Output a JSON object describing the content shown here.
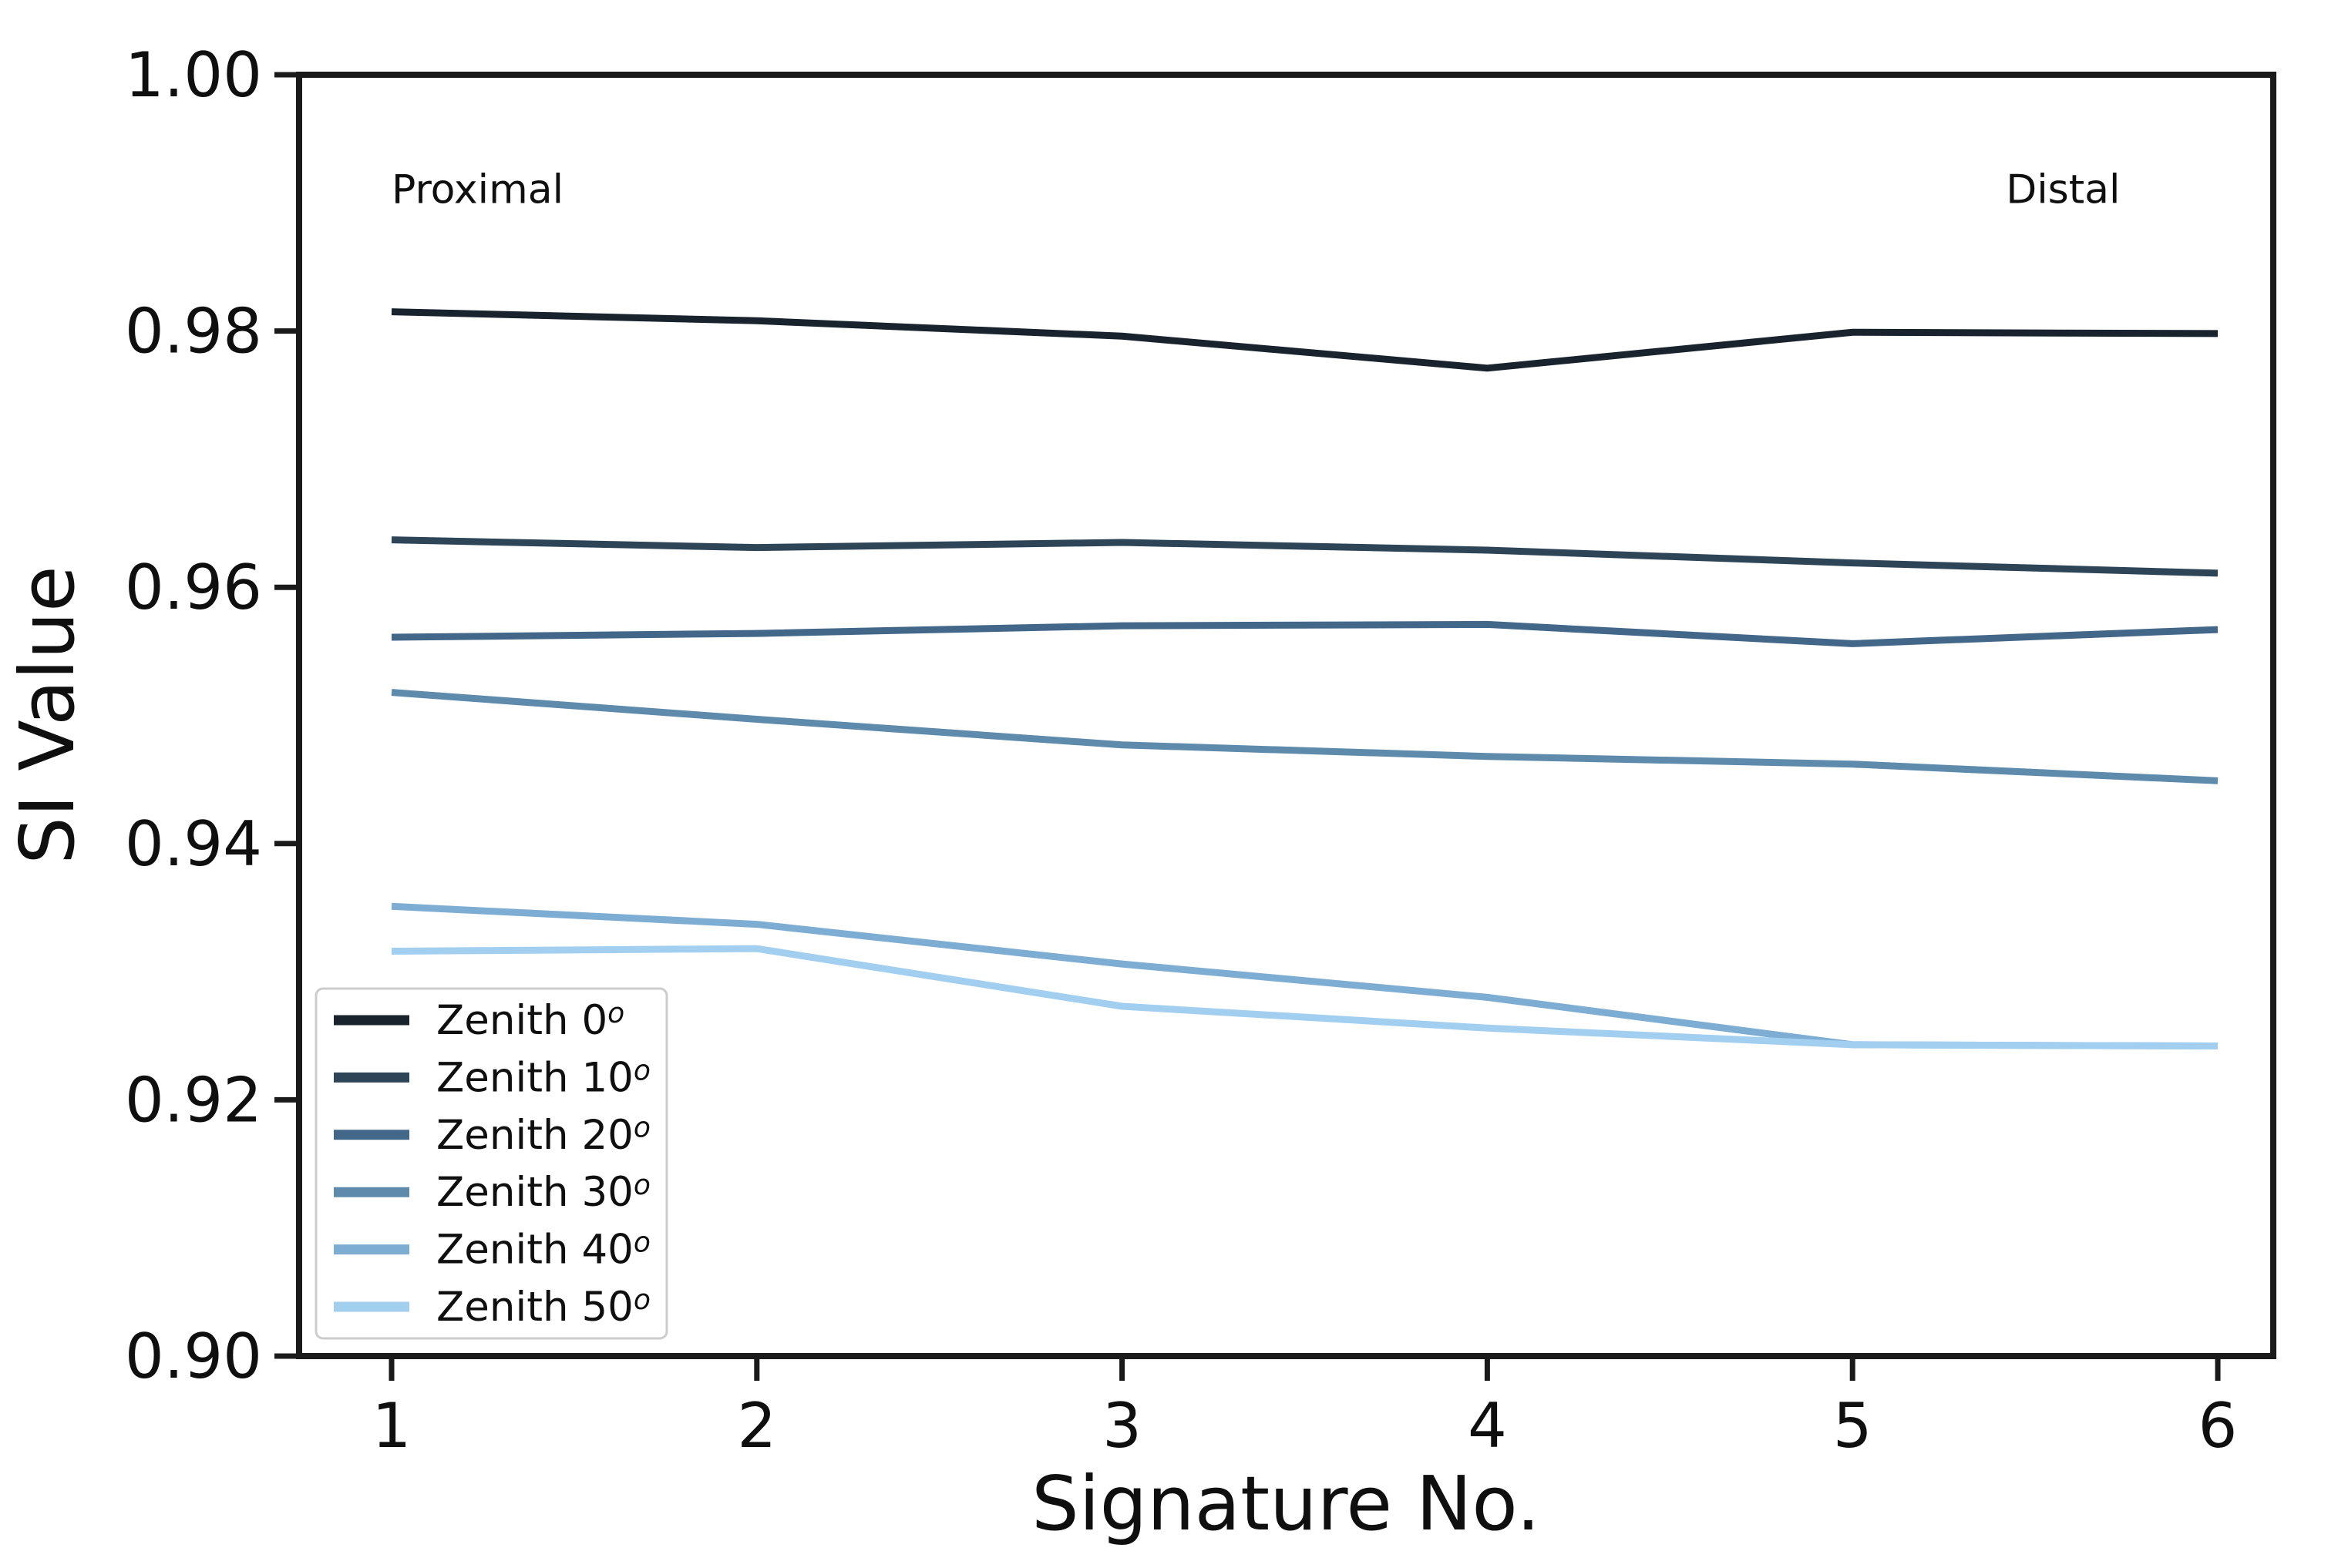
{
  "chart_data": {
    "type": "line",
    "title": "",
    "xlabel": "Signature No.",
    "ylabel": "SI Value",
    "x": [
      1,
      2,
      3,
      4,
      5,
      6
    ],
    "xticks": [
      1,
      2,
      3,
      4,
      5,
      6
    ],
    "ylim": [
      0.9,
      1.0
    ],
    "yticks": [
      1.0,
      0.98,
      0.96,
      0.94,
      0.92,
      0.9
    ],
    "grid": false,
    "legend_position": "lower-left",
    "annotations": [
      {
        "text": "Proximal",
        "x": 1.0,
        "y": 0.99
      },
      {
        "text": "Distal",
        "x": 5.42,
        "y": 0.99
      }
    ],
    "series": [
      {
        "name": "Zenith 0°",
        "color": "#19232e",
        "values": [
          0.9815,
          0.9808,
          0.9796,
          0.9771,
          0.9799,
          0.9798
        ]
      },
      {
        "name": "Zenith 10°",
        "color": "#2e4457",
        "values": [
          0.9637,
          0.9631,
          0.9635,
          0.9629,
          0.9619,
          0.9611
        ]
      },
      {
        "name": "Zenith 20°",
        "color": "#426789",
        "values": [
          0.9561,
          0.9564,
          0.957,
          0.9571,
          0.9556,
          0.9567
        ]
      },
      {
        "name": "Zenith 30°",
        "color": "#5e8bac",
        "values": [
          0.9518,
          0.9497,
          0.9477,
          0.9468,
          0.9462,
          0.9449
        ]
      },
      {
        "name": "Zenith 40°",
        "color": "#7eadd3",
        "values": [
          0.9351,
          0.9337,
          0.9306,
          0.928,
          0.9243,
          0.9242
        ]
      },
      {
        "name": "Zenith 50°",
        "color": "#a2cff0",
        "values": [
          0.9316,
          0.9318,
          0.9273,
          0.9256,
          0.9243,
          0.9242
        ]
      }
    ]
  },
  "colors": {
    "spine": "#1a1a1a",
    "text": "#0f0f0f",
    "legend_border": "#cccccc",
    "legend_fill": "#ffffff",
    "background": "#ffffff"
  }
}
